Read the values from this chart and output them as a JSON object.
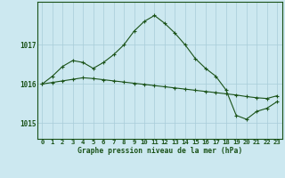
{
  "title": "Graphe pression niveau de la mer (hPa)",
  "bg_color": "#cce8f0",
  "grid_color": "#a8ccd8",
  "line_color": "#1a5218",
  "hours": [
    0,
    1,
    2,
    3,
    4,
    5,
    6,
    7,
    8,
    9,
    10,
    11,
    12,
    13,
    14,
    15,
    16,
    17,
    18,
    19,
    20,
    21,
    22,
    23
  ],
  "line1": [
    1016.0,
    1016.2,
    1016.45,
    1016.6,
    1016.55,
    1016.4,
    1016.55,
    1016.75,
    1017.0,
    1017.35,
    1017.6,
    1017.75,
    1017.55,
    1017.3,
    1017.0,
    1016.65,
    1016.4,
    1016.2,
    1015.85,
    1015.2,
    1015.1,
    1015.3,
    1015.38,
    1015.55
  ],
  "line2": [
    1016.0,
    1016.04,
    1016.08,
    1016.12,
    1016.16,
    1016.14,
    1016.11,
    1016.08,
    1016.05,
    1016.02,
    1015.99,
    1015.96,
    1015.93,
    1015.9,
    1015.87,
    1015.84,
    1015.81,
    1015.78,
    1015.75,
    1015.72,
    1015.68,
    1015.65,
    1015.63,
    1015.7
  ],
  "ylim": [
    1014.6,
    1018.1
  ],
  "yticks": [
    1015,
    1016,
    1017
  ],
  "figsize": [
    3.2,
    2.0
  ],
  "dpi": 100
}
